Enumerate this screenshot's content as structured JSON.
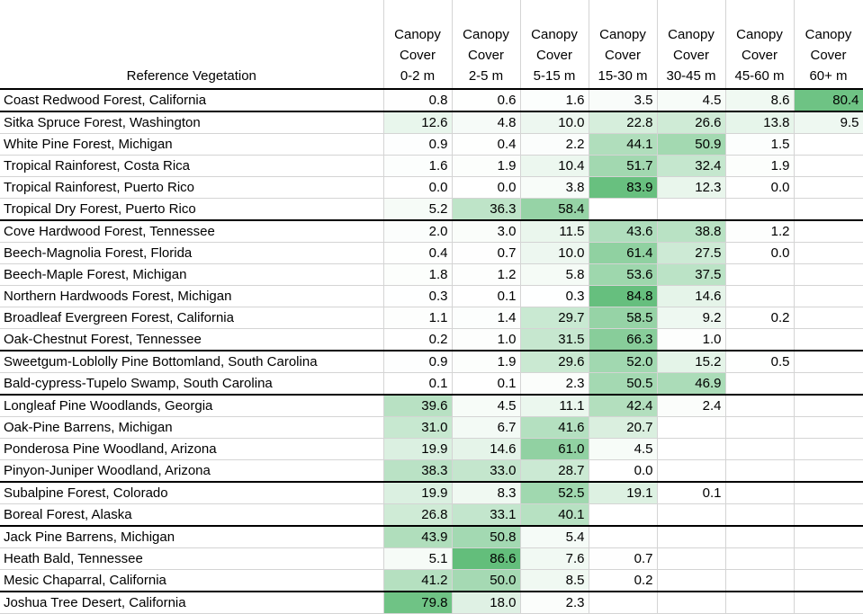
{
  "header": {
    "label": "Reference Vegetation",
    "columns": [
      [
        "Canopy",
        "Cover",
        "0-2 m"
      ],
      [
        "Canopy",
        "Cover",
        "2-5 m"
      ],
      [
        "Canopy",
        "Cover",
        "5-15 m"
      ],
      [
        "Canopy",
        "Cover",
        "15-30 m"
      ],
      [
        "Canopy",
        "Cover",
        "30-45 m"
      ],
      [
        "Canopy",
        "Cover",
        "45-60 m"
      ],
      [
        "Canopy",
        "Cover",
        "60+ m"
      ]
    ]
  },
  "heatmap": {
    "min_color": "#ffffff",
    "max_color": "#63be7b",
    "max_value": 86.6
  },
  "group_end_rows": [
    0,
    5,
    11,
    13,
    17,
    19,
    22
  ],
  "rows": [
    {
      "name": "Coast Redwood Forest, California",
      "values": [
        "0.8",
        "0.6",
        "1.6",
        "3.5",
        "4.5",
        "8.6",
        "80.4"
      ]
    },
    {
      "name": "Sitka Spruce Forest, Washington",
      "values": [
        "12.6",
        "4.8",
        "10.0",
        "22.8",
        "26.6",
        "13.8",
        "9.5"
      ]
    },
    {
      "name": "White Pine Forest, Michigan",
      "values": [
        "0.9",
        "0.4",
        "2.2",
        "44.1",
        "50.9",
        "1.5",
        ""
      ]
    },
    {
      "name": "Tropical Rainforest, Costa Rica",
      "values": [
        "1.6",
        "1.9",
        "10.4",
        "51.7",
        "32.4",
        "1.9",
        ""
      ]
    },
    {
      "name": "Tropical Rainforest, Puerto Rico",
      "values": [
        "0.0",
        "0.0",
        "3.8",
        "83.9",
        "12.3",
        "0.0",
        ""
      ]
    },
    {
      "name": "Tropical Dry Forest, Puerto Rico",
      "values": [
        "5.2",
        "36.3",
        "58.4",
        "",
        "",
        "",
        ""
      ]
    },
    {
      "name": "Cove Hardwood Forest, Tennessee",
      "values": [
        "2.0",
        "3.0",
        "11.5",
        "43.6",
        "38.8",
        "1.2",
        ""
      ]
    },
    {
      "name": "Beech-Magnolia Forest, Florida",
      "values": [
        "0.4",
        "0.7",
        "10.0",
        "61.4",
        "27.5",
        "0.0",
        ""
      ]
    },
    {
      "name": "Beech-Maple Forest, Michigan",
      "values": [
        "1.8",
        "1.2",
        "5.8",
        "53.6",
        "37.5",
        "",
        ""
      ]
    },
    {
      "name": "Northern Hardwoods Forest, Michigan",
      "values": [
        "0.3",
        "0.1",
        "0.3",
        "84.8",
        "14.6",
        "",
        ""
      ]
    },
    {
      "name": "Broadleaf Evergreen Forest, California",
      "values": [
        "1.1",
        "1.4",
        "29.7",
        "58.5",
        "9.2",
        "0.2",
        ""
      ]
    },
    {
      "name": "Oak-Chestnut Forest, Tennessee",
      "values": [
        "0.2",
        "1.0",
        "31.5",
        "66.3",
        "1.0",
        "",
        ""
      ]
    },
    {
      "name": "Sweetgum-Loblolly Pine Bottomland, South Carolina",
      "values": [
        "0.9",
        "1.9",
        "29.6",
        "52.0",
        "15.2",
        "0.5",
        ""
      ]
    },
    {
      "name": "Bald-cypress-Tupelo Swamp, South Carolina",
      "values": [
        "0.1",
        "0.1",
        "2.3",
        "50.5",
        "46.9",
        "",
        ""
      ]
    },
    {
      "name": "Longleaf Pine Woodlands, Georgia",
      "values": [
        "39.6",
        "4.5",
        "11.1",
        "42.4",
        "2.4",
        "",
        ""
      ]
    },
    {
      "name": "Oak-Pine Barrens, Michigan",
      "values": [
        "31.0",
        "6.7",
        "41.6",
        "20.7",
        "",
        "",
        ""
      ]
    },
    {
      "name": "Ponderosa Pine Woodland, Arizona",
      "values": [
        "19.9",
        "14.6",
        "61.0",
        "4.5",
        "",
        "",
        ""
      ]
    },
    {
      "name": "Pinyon-Juniper Woodland, Arizona",
      "values": [
        "38.3",
        "33.0",
        "28.7",
        "0.0",
        "",
        "",
        ""
      ]
    },
    {
      "name": "Subalpine Forest, Colorado",
      "values": [
        "19.9",
        "8.3",
        "52.5",
        "19.1",
        "0.1",
        "",
        ""
      ]
    },
    {
      "name": "Boreal Forest, Alaska",
      "values": [
        "26.8",
        "33.1",
        "40.1",
        "",
        "",
        "",
        ""
      ]
    },
    {
      "name": "Jack Pine Barrens, Michigan",
      "values": [
        "43.9",
        "50.8",
        "5.4",
        "",
        "",
        "",
        ""
      ]
    },
    {
      "name": "Heath Bald, Tennessee",
      "values": [
        "5.1",
        "86.6",
        "7.6",
        "0.7",
        "",
        "",
        ""
      ]
    },
    {
      "name": "Mesic Chaparral, California",
      "values": [
        "41.2",
        "50.0",
        "8.5",
        "0.2",
        "",
        "",
        ""
      ]
    },
    {
      "name": "Joshua Tree Desert, California",
      "values": [
        "79.8",
        "18.0",
        "2.3",
        "",
        "",
        "",
        ""
      ]
    }
  ]
}
